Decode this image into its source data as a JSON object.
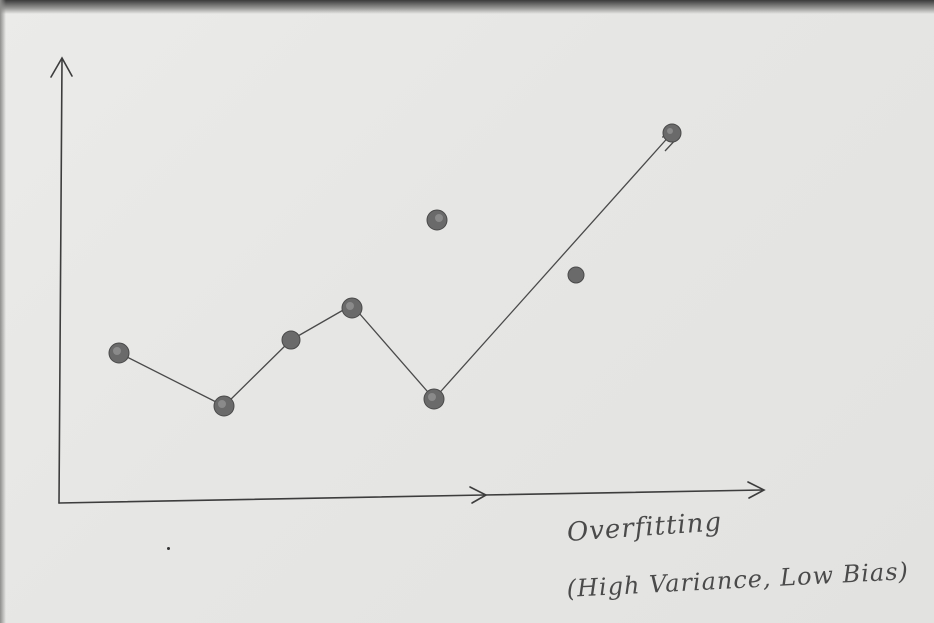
{
  "caption": {
    "title": "Overfitting",
    "subtitle": "(High Variance, Low Bias)"
  },
  "colors": {
    "paper": "#e7e7e5",
    "pencil": "#3d3d3d",
    "dot": "#6a6a6a"
  },
  "diagram": {
    "type": "scatter-with-overfit-curve",
    "points": [
      {
        "id": "p1",
        "on_curve": true
      },
      {
        "id": "p2",
        "on_curve": true
      },
      {
        "id": "p3",
        "on_curve": true
      },
      {
        "id": "p4",
        "on_curve": true
      },
      {
        "id": "p5",
        "on_curve": true
      },
      {
        "id": "p6",
        "on_curve": false
      },
      {
        "id": "p7",
        "on_curve": false
      },
      {
        "id": "p8",
        "on_curve": true
      }
    ]
  }
}
